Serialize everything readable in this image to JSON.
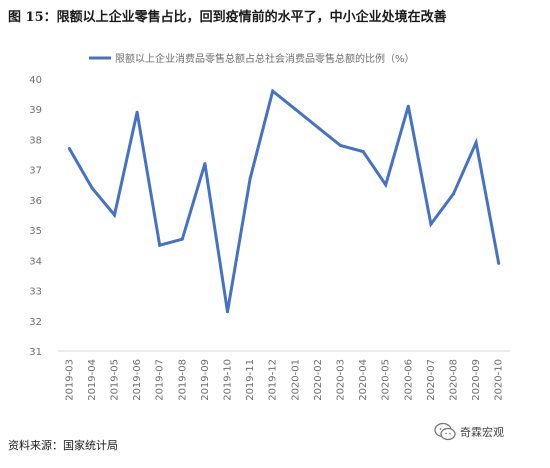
{
  "figure": {
    "title": "图 15：限额以上企业零售占比，回到疫情前的水平了，中小企业处境在改善",
    "source": "资料来源：国家统计局",
    "watermark_text": "奇霖宏观",
    "watermark_icon": "wechat-icon"
  },
  "chart_data": {
    "type": "line",
    "categories": [
      "2019-03",
      "2019-04",
      "2019-05",
      "2019-06",
      "2019-07",
      "2019-08",
      "2019-09",
      "2019-10",
      "2019-11",
      "2019-12",
      "2020-01",
      "2020-02",
      "2020-03",
      "2020-04",
      "2020-05",
      "2020-06",
      "2020-07",
      "2020-08",
      "2020-09",
      "2020-10"
    ],
    "series": [
      {
        "name": "限额以上企业消费品零售总额占总社会消费品零售总额的比例（%）",
        "values": [
          37.7,
          36.4,
          35.5,
          38.9,
          34.5,
          34.7,
          37.2,
          32.3,
          36.7,
          39.6,
          39.0,
          38.4,
          37.8,
          37.6,
          36.5,
          39.1,
          35.2,
          36.2,
          37.9,
          33.9
        ],
        "color": "#4472c4"
      }
    ],
    "ylim": [
      31,
      40
    ],
    "yticks": [
      31,
      32,
      33,
      34,
      35,
      36,
      37,
      38,
      39,
      40
    ],
    "legend_position": "top",
    "grid": false
  }
}
